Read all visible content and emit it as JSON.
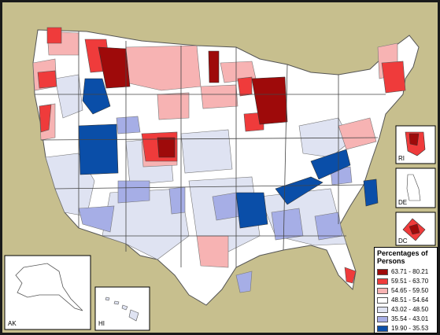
{
  "legend": {
    "title": "Percentages of Persons",
    "classes": [
      {
        "label": "63.71 - 80.21",
        "color": "#9e0a0a"
      },
      {
        "label": "59.51 - 63.70",
        "color": "#ef3b3b"
      },
      {
        "label": "54.65 - 59.50",
        "color": "#f7b3b3"
      },
      {
        "label": "48.51 - 54.64",
        "color": "#ffffff"
      },
      {
        "label": "43.02 - 48.50",
        "color": "#dfe3f2"
      },
      {
        "label": "35.54 - 43.01",
        "color": "#a6aee6"
      },
      {
        "label": "19.90 - 35.53",
        "color": "#0a4ea8"
      }
    ]
  },
  "insets": {
    "ak": "AK",
    "hi": "HI",
    "ri": "RI",
    "de": "DE",
    "dc": "DC"
  },
  "colors": {
    "background": "#c7bf8e",
    "border": "#1a1a1a",
    "region_outline": "#555555"
  }
}
